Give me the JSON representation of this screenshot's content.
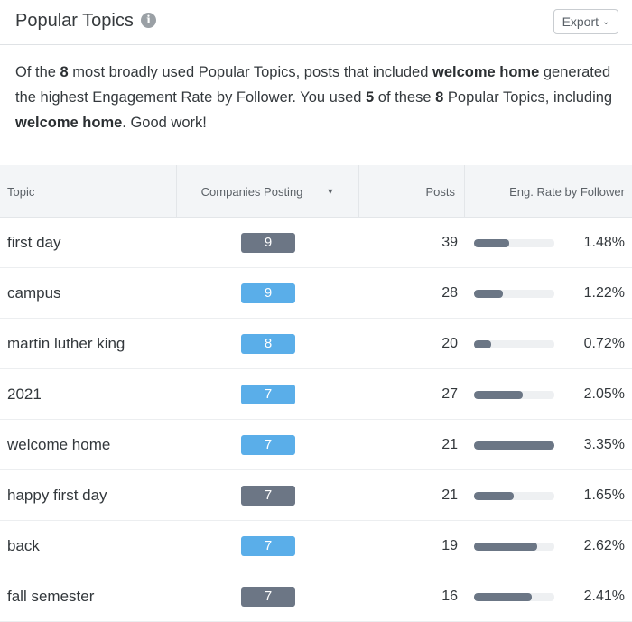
{
  "header": {
    "title": "Popular Topics",
    "info_icon": "info-icon",
    "export_label": "Export",
    "export_icon": "chevron-down-icon"
  },
  "summary": {
    "p1": "Of the ",
    "b1": "8",
    "p2": " most broadly used Popular Topics, posts that included ",
    "b2": "welcome home",
    "p3": " generated the highest Engagement Rate by Follower. You used ",
    "b3": "5",
    "p4": " of these ",
    "b4": "8",
    "p5": " Popular Topics, including ",
    "b5": "welcome home",
    "p6": ". Good work!"
  },
  "table": {
    "columns": {
      "topic": "Topic",
      "companies": "Companies Posting",
      "posts": "Posts",
      "eng_rate": "Eng. Rate by Follower"
    },
    "sort_icon": "caret-down-icon",
    "colors": {
      "badge_dark": "#6c7685",
      "badge_light": "#5aaee9",
      "bar": "#6b7685",
      "track": "#eef0f2"
    },
    "max_rate": 3.35,
    "rows": [
      {
        "topic": "first day",
        "companies": "9",
        "used": false,
        "posts": "39",
        "rate_value": 1.48,
        "rate": "1.48%"
      },
      {
        "topic": "campus",
        "companies": "9",
        "used": true,
        "posts": "28",
        "rate_value": 1.22,
        "rate": "1.22%"
      },
      {
        "topic": "martin luther king",
        "companies": "8",
        "used": true,
        "posts": "20",
        "rate_value": 0.72,
        "rate": "0.72%"
      },
      {
        "topic": "2021",
        "companies": "7",
        "used": true,
        "posts": "27",
        "rate_value": 2.05,
        "rate": "2.05%"
      },
      {
        "topic": "welcome home",
        "companies": "7",
        "used": true,
        "posts": "21",
        "rate_value": 3.35,
        "rate": "3.35%"
      },
      {
        "topic": "happy first day",
        "companies": "7",
        "used": false,
        "posts": "21",
        "rate_value": 1.65,
        "rate": "1.65%"
      },
      {
        "topic": "back",
        "companies": "7",
        "used": true,
        "posts": "19",
        "rate_value": 2.62,
        "rate": "2.62%"
      },
      {
        "topic": "fall semester",
        "companies": "7",
        "used": false,
        "posts": "16",
        "rate_value": 2.41,
        "rate": "2.41%"
      }
    ]
  }
}
